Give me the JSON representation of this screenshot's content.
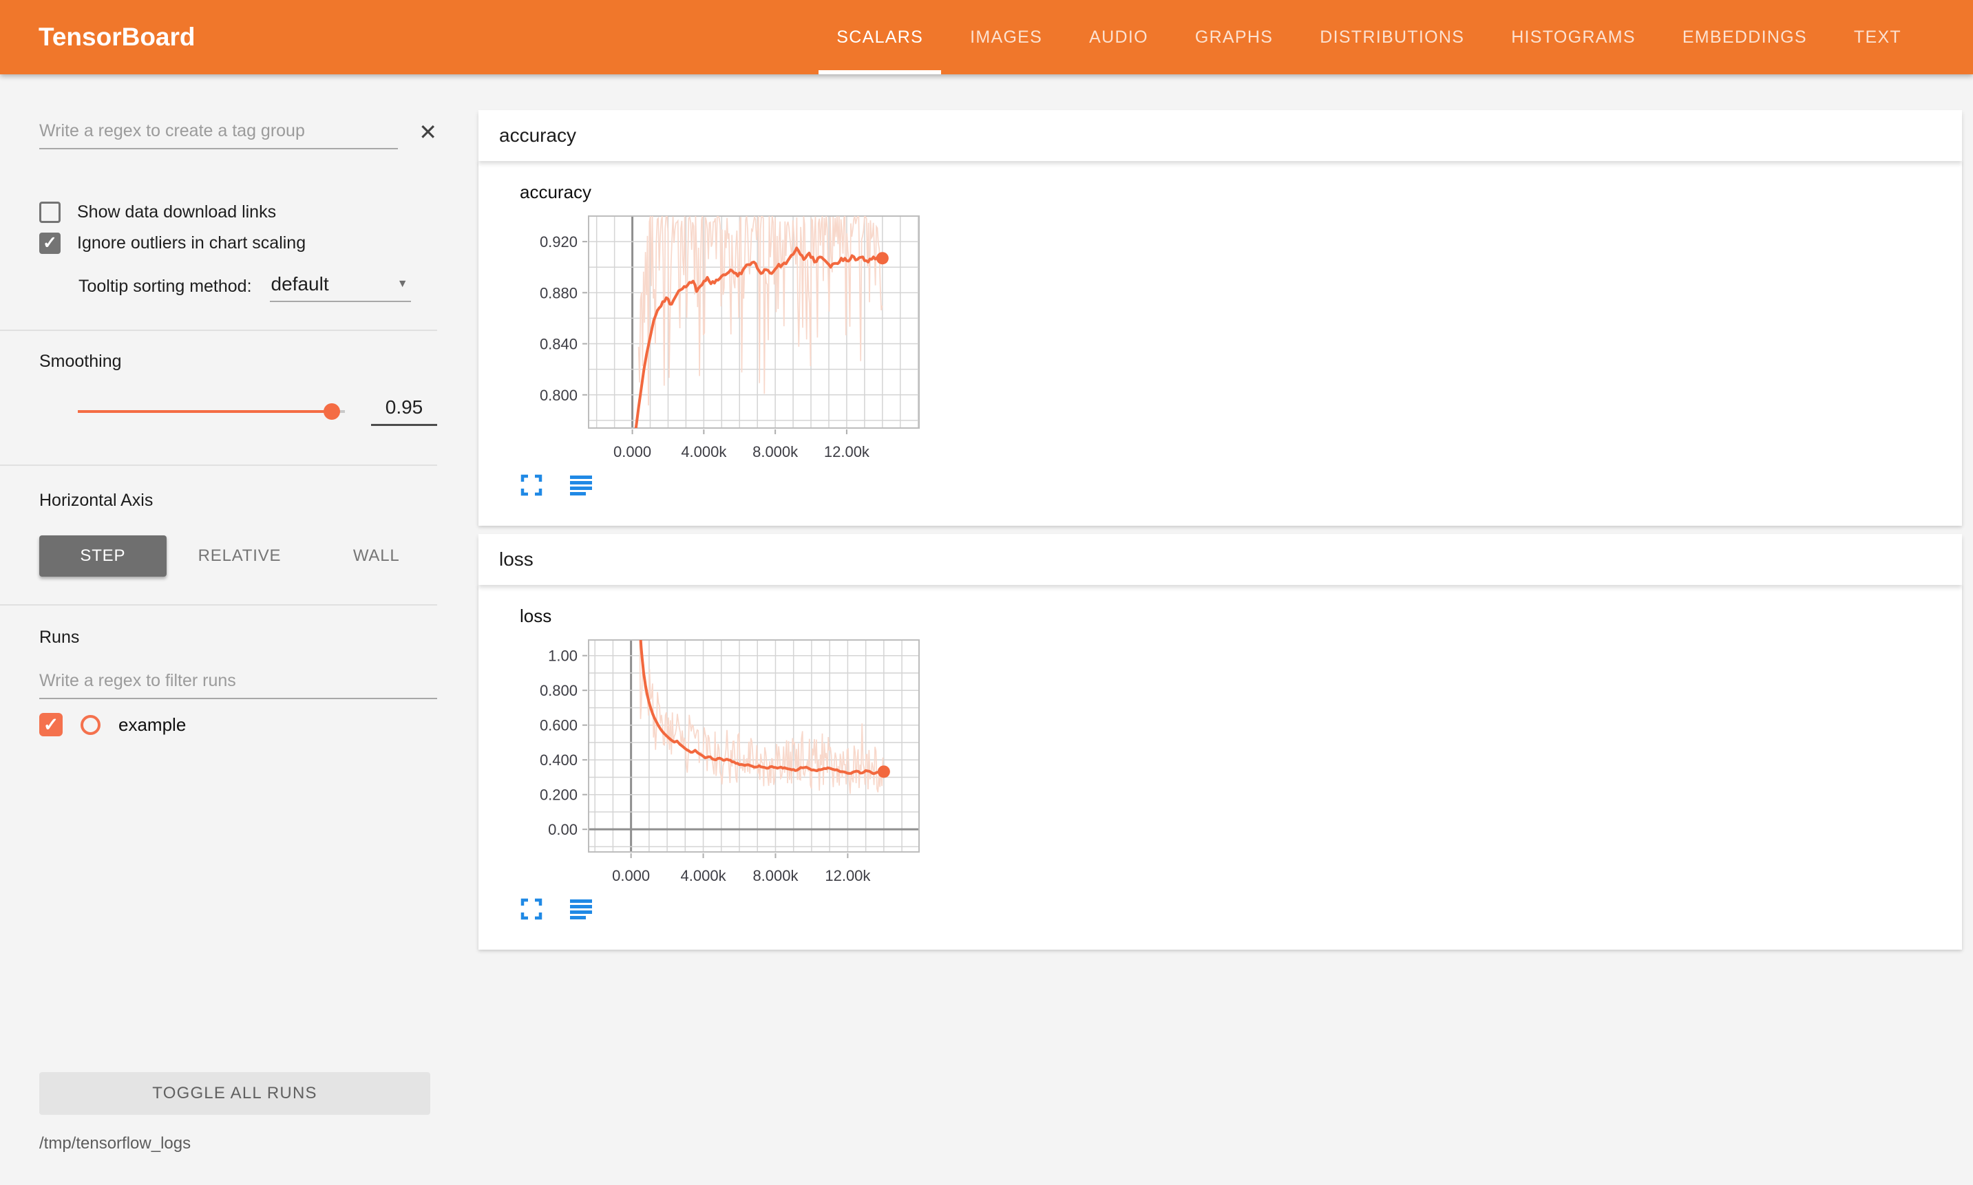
{
  "topbar": {
    "title": "TensorBoard",
    "tabs": [
      {
        "label": "SCALARS",
        "active": true
      },
      {
        "label": "IMAGES",
        "active": false
      },
      {
        "label": "AUDIO",
        "active": false
      },
      {
        "label": "GRAPHS",
        "active": false
      },
      {
        "label": "DISTRIBUTIONS",
        "active": false
      },
      {
        "label": "HISTOGRAMS",
        "active": false
      },
      {
        "label": "EMBEDDINGS",
        "active": false
      },
      {
        "label": "TEXT",
        "active": false
      }
    ],
    "accent_color": "#f0772b"
  },
  "icons": {
    "close": "✕",
    "caret": "▼",
    "check": "✓"
  },
  "sidebar": {
    "tag_filter_placeholder": "Write a regex to create a tag group",
    "checkboxes": [
      {
        "label": "Show data download links",
        "checked": false
      },
      {
        "label": "Ignore outliers in chart scaling",
        "checked": true
      }
    ],
    "tooltip_sort": {
      "label": "Tooltip sorting method:",
      "value": "default"
    },
    "smoothing": {
      "label": "Smoothing",
      "value": "0.95",
      "fraction": 0.95
    },
    "horizontal_axis": {
      "label": "Horizontal Axis",
      "options": [
        {
          "label": "STEP",
          "active": true
        },
        {
          "label": "RELATIVE",
          "active": false
        },
        {
          "label": "WALL",
          "active": false
        }
      ]
    },
    "runs": {
      "label": "Runs",
      "filter_placeholder": "Write a regex to filter runs",
      "items": [
        {
          "label": "example",
          "checked": true,
          "color": "#f4714d"
        }
      ]
    },
    "toggle_all_label": "TOGGLE ALL RUNS",
    "log_dir": "/tmp/tensorflow_logs"
  },
  "content": {
    "groups": [
      {
        "title": "accuracy"
      },
      {
        "title": "loss"
      }
    ]
  },
  "chart_data": [
    {
      "type": "line",
      "title": "accuracy",
      "run": "example",
      "color": "#f2683e",
      "raw_color": "#f8d8cb",
      "xlim": [
        -2450,
        16050
      ],
      "ylim": [
        0.774,
        0.94
      ],
      "x_grid_step": 1000,
      "y_grid_step": 0.02,
      "zero_x_axis": true,
      "zero_y_axis": false,
      "xticks": [
        {
          "v": 0,
          "label": "0.000"
        },
        {
          "v": 4000,
          "label": "4.000k"
        },
        {
          "v": 8000,
          "label": "8.000k"
        },
        {
          "v": 12000,
          "label": "12.00k"
        }
      ],
      "yticks": [
        {
          "v": 0.8,
          "label": "0.800"
        },
        {
          "v": 0.84,
          "label": "0.840"
        },
        {
          "v": 0.88,
          "label": "0.880"
        },
        {
          "v": 0.92,
          "label": "0.920"
        }
      ],
      "smoothed": [
        [
          200,
          0.774
        ],
        [
          350,
          0.79
        ],
        [
          500,
          0.805
        ],
        [
          650,
          0.82
        ],
        [
          800,
          0.832
        ],
        [
          950,
          0.842
        ],
        [
          1100,
          0.852
        ],
        [
          1300,
          0.862
        ],
        [
          1500,
          0.868
        ],
        [
          1700,
          0.873
        ],
        [
          1900,
          0.876
        ],
        [
          2100,
          0.871
        ],
        [
          2300,
          0.874
        ],
        [
          2500,
          0.879
        ],
        [
          2800,
          0.883
        ],
        [
          3100,
          0.886
        ],
        [
          3400,
          0.889
        ],
        [
          3600,
          0.881
        ],
        [
          3800,
          0.885
        ],
        [
          4000,
          0.889
        ],
        [
          4200,
          0.892
        ],
        [
          4400,
          0.887
        ],
        [
          4700,
          0.89
        ],
        [
          5000,
          0.893
        ],
        [
          5300,
          0.895
        ],
        [
          5600,
          0.897
        ],
        [
          5900,
          0.893
        ],
        [
          6200,
          0.898
        ],
        [
          6500,
          0.902
        ],
        [
          6800,
          0.904
        ],
        [
          7000,
          0.899
        ],
        [
          7200,
          0.895
        ],
        [
          7500,
          0.898
        ],
        [
          7800,
          0.895
        ],
        [
          8100,
          0.9
        ],
        [
          8400,
          0.902
        ],
        [
          8700,
          0.905
        ],
        [
          9000,
          0.91
        ],
        [
          9200,
          0.915
        ],
        [
          9400,
          0.91
        ],
        [
          9600,
          0.906
        ],
        [
          9900,
          0.911
        ],
        [
          10200,
          0.904
        ],
        [
          10500,
          0.908
        ],
        [
          10800,
          0.905
        ],
        [
          11100,
          0.9
        ],
        [
          11400,
          0.903
        ],
        [
          11700,
          0.907
        ],
        [
          12000,
          0.905
        ],
        [
          12300,
          0.909
        ],
        [
          12600,
          0.906
        ],
        [
          12900,
          0.908
        ],
        [
          13200,
          0.904
        ],
        [
          13500,
          0.908
        ],
        [
          13800,
          0.906
        ],
        [
          14000,
          0.907
        ]
      ],
      "raw_envelope": [
        [
          350,
          0.776,
          0.86
        ],
        [
          700,
          0.8,
          0.91
        ],
        [
          1000,
          0.835,
          0.94
        ],
        [
          1400,
          0.845,
          0.94
        ],
        [
          1800,
          0.85,
          0.94
        ],
        [
          2200,
          0.845,
          0.94
        ],
        [
          2600,
          0.85,
          0.94
        ],
        [
          3000,
          0.855,
          0.94
        ],
        [
          3500,
          0.85,
          0.94
        ],
        [
          4000,
          0.845,
          0.94
        ],
        [
          4500,
          0.855,
          0.94
        ],
        [
          5000,
          0.85,
          0.94
        ],
        [
          5500,
          0.855,
          0.94
        ],
        [
          6000,
          0.845,
          0.94
        ],
        [
          6500,
          0.855,
          0.94
        ],
        [
          7000,
          0.85,
          0.94
        ],
        [
          7500,
          0.845,
          0.94
        ],
        [
          8000,
          0.855,
          0.94
        ],
        [
          8500,
          0.85,
          0.94
        ],
        [
          9000,
          0.855,
          0.94
        ],
        [
          9500,
          0.86,
          0.94
        ],
        [
          10000,
          0.85,
          0.94
        ],
        [
          10500,
          0.845,
          0.94
        ],
        [
          11000,
          0.855,
          0.94
        ],
        [
          11500,
          0.85,
          0.94
        ],
        [
          12000,
          0.845,
          0.94
        ],
        [
          12500,
          0.855,
          0.94
        ],
        [
          13000,
          0.85,
          0.94
        ],
        [
          13500,
          0.855,
          0.935
        ],
        [
          14000,
          0.865,
          0.925
        ]
      ],
      "raw_step": 55,
      "raw_bias_exp": 2.6,
      "raw_dip_chance": 0.1,
      "smooth_jitter": 0.0016,
      "seed": 42
    },
    {
      "type": "line",
      "title": "loss",
      "run": "example",
      "color": "#f2683e",
      "raw_color": "#f8d8cb",
      "xlim": [
        -2350,
        15950
      ],
      "ylim": [
        -0.13,
        1.09
      ],
      "x_grid_step": 1000,
      "y_grid_step": 0.1,
      "zero_x_axis": true,
      "zero_y_axis": true,
      "xticks": [
        {
          "v": 0,
          "label": "0.000"
        },
        {
          "v": 4000,
          "label": "4.000k"
        },
        {
          "v": 8000,
          "label": "8.000k"
        },
        {
          "v": 12000,
          "label": "12.00k"
        }
      ],
      "yticks": [
        {
          "v": 0,
          "label": "0.00"
        },
        {
          "v": 0.2,
          "label": "0.200"
        },
        {
          "v": 0.4,
          "label": "0.400"
        },
        {
          "v": 0.6,
          "label": "0.600"
        },
        {
          "v": 0.8,
          "label": "0.800"
        },
        {
          "v": 1.0,
          "label": "1.00"
        }
      ],
      "smoothed": [
        [
          420,
          1.3
        ],
        [
          500,
          1.15
        ],
        [
          560,
          1.05
        ],
        [
          620,
          0.98
        ],
        [
          700,
          0.9
        ],
        [
          800,
          0.83
        ],
        [
          900,
          0.775
        ],
        [
          1000,
          0.73
        ],
        [
          1100,
          0.695
        ],
        [
          1200,
          0.665
        ],
        [
          1300,
          0.64
        ],
        [
          1400,
          0.62
        ],
        [
          1500,
          0.6
        ],
        [
          1650,
          0.575
        ],
        [
          1800,
          0.555
        ],
        [
          1950,
          0.54
        ],
        [
          2100,
          0.525
        ],
        [
          2250,
          0.512
        ],
        [
          2400,
          0.502
        ],
        [
          2550,
          0.508
        ],
        [
          2700,
          0.49
        ],
        [
          2850,
          0.478
        ],
        [
          3000,
          0.465
        ],
        [
          3200,
          0.452
        ],
        [
          3400,
          0.444
        ],
        [
          3550,
          0.455
        ],
        [
          3700,
          0.44
        ],
        [
          3900,
          0.428
        ],
        [
          4100,
          0.412
        ],
        [
          4300,
          0.418
        ],
        [
          4500,
          0.406
        ],
        [
          4700,
          0.4
        ],
        [
          4900,
          0.41
        ],
        [
          5100,
          0.398
        ],
        [
          5300,
          0.404
        ],
        [
          5500,
          0.398
        ],
        [
          5700,
          0.388
        ],
        [
          5900,
          0.38
        ],
        [
          6100,
          0.374
        ],
        [
          6300,
          0.368
        ],
        [
          6500,
          0.372
        ],
        [
          6700,
          0.364
        ],
        [
          6900,
          0.358
        ],
        [
          7100,
          0.366
        ],
        [
          7300,
          0.358
        ],
        [
          7500,
          0.352
        ],
        [
          7700,
          0.36
        ],
        [
          7900,
          0.357
        ],
        [
          8100,
          0.352
        ],
        [
          8300,
          0.358
        ],
        [
          8500,
          0.355
        ],
        [
          8700,
          0.348
        ],
        [
          8900,
          0.343
        ],
        [
          9100,
          0.338
        ],
        [
          9300,
          0.348
        ],
        [
          9500,
          0.354
        ],
        [
          9700,
          0.358
        ],
        [
          9900,
          0.348
        ],
        [
          10100,
          0.342
        ],
        [
          10300,
          0.337
        ],
        [
          10500,
          0.343
        ],
        [
          10700,
          0.35
        ],
        [
          10900,
          0.354
        ],
        [
          11100,
          0.348
        ],
        [
          11300,
          0.342
        ],
        [
          11500,
          0.337
        ],
        [
          11700,
          0.332
        ],
        [
          11900,
          0.327
        ],
        [
          12100,
          0.322
        ],
        [
          12300,
          0.33
        ],
        [
          12500,
          0.335
        ],
        [
          12700,
          0.324
        ],
        [
          12900,
          0.33
        ],
        [
          13100,
          0.336
        ],
        [
          13300,
          0.328
        ],
        [
          13500,
          0.322
        ],
        [
          13700,
          0.33
        ],
        [
          14000,
          0.332
        ]
      ],
      "raw_envelope": [
        [
          420,
          0.5,
          1.3
        ],
        [
          700,
          0.46,
          1.25
        ],
        [
          1000,
          0.44,
          1.05
        ],
        [
          1300,
          0.43,
          0.88
        ],
        [
          1600,
          0.41,
          0.78
        ],
        [
          1900,
          0.39,
          0.72
        ],
        [
          2200,
          0.37,
          0.69
        ],
        [
          2500,
          0.35,
          0.67
        ],
        [
          2800,
          0.34,
          0.66
        ],
        [
          3100,
          0.31,
          0.7
        ],
        [
          3400,
          0.31,
          0.64
        ],
        [
          3700,
          0.3,
          0.62
        ],
        [
          4000,
          0.29,
          0.6
        ],
        [
          4400,
          0.27,
          0.63
        ],
        [
          4800,
          0.26,
          0.6
        ],
        [
          5200,
          0.24,
          0.58
        ],
        [
          5600,
          0.23,
          0.57
        ],
        [
          6000,
          0.25,
          0.56
        ],
        [
          6400,
          0.23,
          0.53
        ],
        [
          6800,
          0.25,
          0.55
        ],
        [
          7200,
          0.21,
          0.51
        ],
        [
          7600,
          0.22,
          0.5
        ],
        [
          8000,
          0.23,
          0.52
        ],
        [
          8400,
          0.19,
          0.5
        ],
        [
          8800,
          0.21,
          0.54
        ],
        [
          9200,
          0.22,
          0.6
        ],
        [
          9600,
          0.23,
          0.62
        ],
        [
          10000,
          0.21,
          0.51
        ],
        [
          10400,
          0.22,
          0.55
        ],
        [
          10800,
          0.21,
          0.57
        ],
        [
          11200,
          0.23,
          0.51
        ],
        [
          11600,
          0.21,
          0.5
        ],
        [
          12000,
          0.19,
          0.62
        ],
        [
          12400,
          0.21,
          0.56
        ],
        [
          12800,
          0.22,
          0.63
        ],
        [
          13200,
          0.21,
          0.52
        ],
        [
          13600,
          0.2,
          0.48
        ],
        [
          14000,
          0.26,
          0.44
        ]
      ],
      "raw_step": 55,
      "raw_bias_exp": 1.0,
      "raw_dip_chance": 0,
      "smooth_jitter": 0.005,
      "seed": 1337
    }
  ]
}
